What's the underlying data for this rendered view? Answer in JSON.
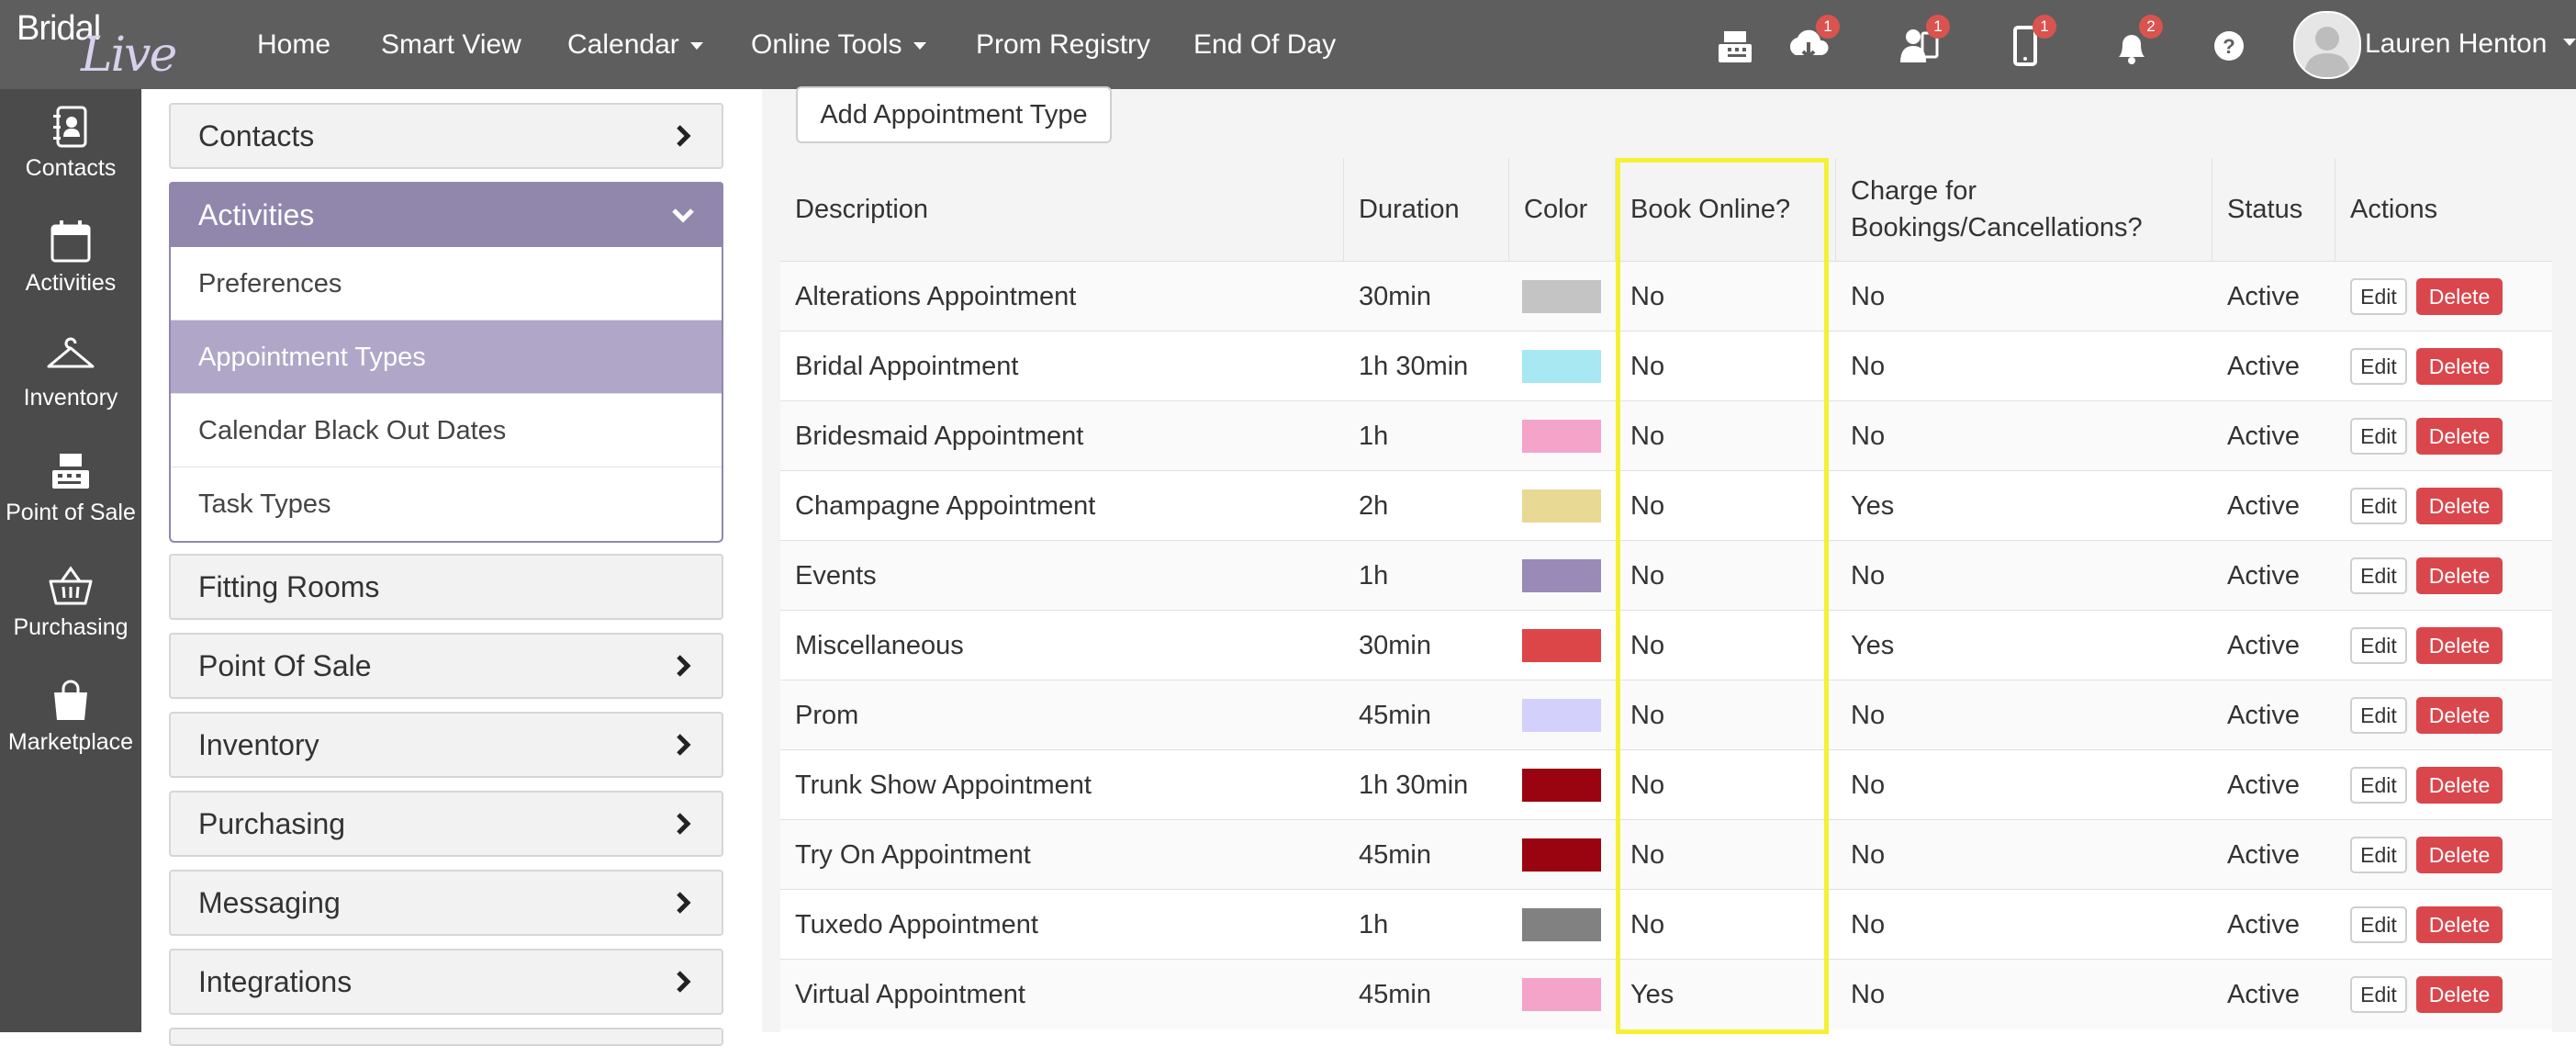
{
  "brand": {
    "word": "Bridal",
    "script": "Live"
  },
  "nav": {
    "items": [
      {
        "label": "Home",
        "dropdown": false
      },
      {
        "label": "Smart View",
        "dropdown": false
      },
      {
        "label": "Calendar",
        "dropdown": true
      },
      {
        "label": "Online Tools",
        "dropdown": true
      },
      {
        "label": "Prom Registry",
        "dropdown": false
      },
      {
        "label": "End Of Day",
        "dropdown": false
      }
    ],
    "icons": [
      {
        "name": "register-icon",
        "badge": ""
      },
      {
        "name": "cloud-download-icon",
        "badge": "1"
      },
      {
        "name": "users-alert-icon",
        "badge": "1"
      },
      {
        "name": "mobile-icon",
        "badge": "1"
      },
      {
        "name": "bell-icon",
        "badge": "2"
      },
      {
        "name": "help-icon",
        "badge": ""
      }
    ],
    "user": {
      "name": "Lauren Henton"
    }
  },
  "rail": {
    "items": [
      {
        "label": "Contacts",
        "icon": "address-book-icon"
      },
      {
        "label": "Activities",
        "icon": "calendar-icon"
      },
      {
        "label": "Inventory",
        "icon": "hanger-icon"
      },
      {
        "label": "Point of Sale",
        "icon": "cash-register-icon"
      },
      {
        "label": "Purchasing",
        "icon": "basket-icon"
      },
      {
        "label": "Marketplace",
        "icon": "shopping-bag-icon"
      }
    ]
  },
  "menu": {
    "contacts": "Contacts",
    "activities": "Activities",
    "sub": [
      "Preferences",
      "Appointment Types",
      "Calendar Black Out Dates",
      "Task Types"
    ],
    "active_sub": "Appointment Types",
    "fitting_rooms": "Fitting Rooms",
    "point_of_sale": "Point Of Sale",
    "inventory": "Inventory",
    "purchasing": "Purchasing",
    "messaging": "Messaging",
    "integrations": "Integrations"
  },
  "main": {
    "add_button": "Add Appointment Type",
    "columns": {
      "description": "Description",
      "duration": "Duration",
      "color": "Color",
      "book_online": "Book Online?",
      "charge_line1": "Charge for",
      "charge_line2": "Bookings/Cancellations?",
      "status": "Status",
      "actions": "Actions"
    },
    "edit_label": "Edit",
    "delete_label": "Delete",
    "rows": [
      {
        "description": "Alterations Appointment",
        "duration": "30min",
        "color": "#c4c4c4",
        "book_online": "No",
        "charge": "No",
        "status": "Active"
      },
      {
        "description": "Bridal Appointment",
        "duration": "1h 30min",
        "color": "#a8e8f2",
        "book_online": "No",
        "charge": "No",
        "status": "Active"
      },
      {
        "description": "Bridesmaid Appointment",
        "duration": "1h",
        "color": "#f3a4c8",
        "book_online": "No",
        "charge": "No",
        "status": "Active"
      },
      {
        "description": "Champagne Appointment",
        "duration": "2h",
        "color": "#e8d994",
        "book_online": "No",
        "charge": "Yes",
        "status": "Active"
      },
      {
        "description": "Events",
        "duration": "1h",
        "color": "#9a8ab8",
        "book_online": "No",
        "charge": "No",
        "status": "Active"
      },
      {
        "description": "Miscellaneous",
        "duration": "30min",
        "color": "#dc4648",
        "book_online": "No",
        "charge": "Yes",
        "status": "Active"
      },
      {
        "description": "Prom",
        "duration": "45min",
        "color": "#d4d0fc",
        "book_online": "No",
        "charge": "No",
        "status": "Active"
      },
      {
        "description": "Trunk Show Appointment",
        "duration": "1h 30min",
        "color": "#9a0410",
        "book_online": "No",
        "charge": "No",
        "status": "Active"
      },
      {
        "description": "Try On Appointment",
        "duration": "45min",
        "color": "#9a0410",
        "book_online": "No",
        "charge": "No",
        "status": "Active"
      },
      {
        "description": "Tuxedo Appointment",
        "duration": "1h",
        "color": "#818181",
        "book_online": "No",
        "charge": "No",
        "status": "Active"
      },
      {
        "description": "Virtual Appointment",
        "duration": "45min",
        "color": "#f3a4c8",
        "book_online": "Yes",
        "charge": "No",
        "status": "Active"
      }
    ]
  }
}
